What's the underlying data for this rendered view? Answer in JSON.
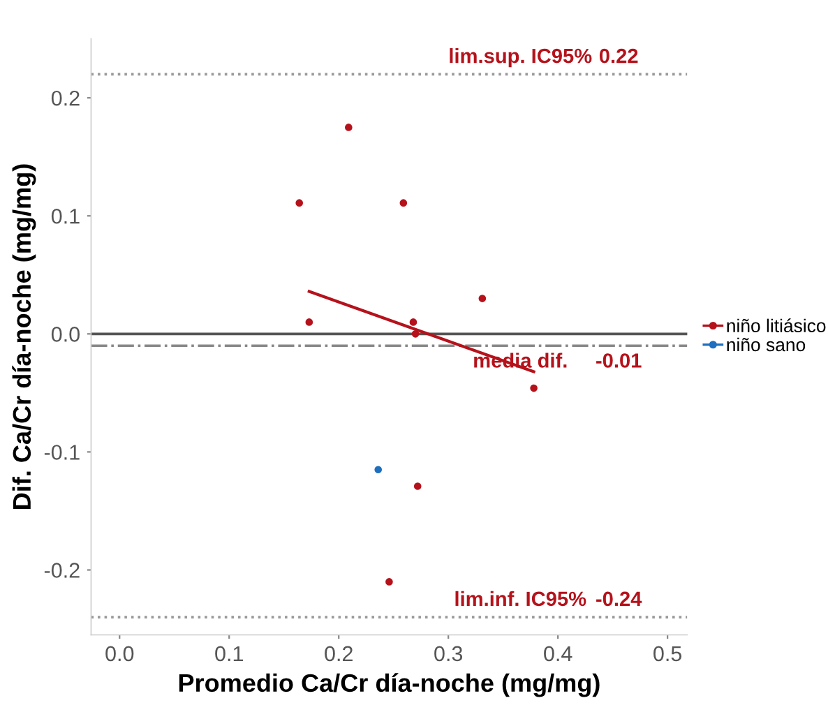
{
  "chart_data": {
    "type": "scatter",
    "xlabel": "Promedio Ca/Cr día-noche (mg/mg)",
    "ylabel": "Dif. Ca/Cr día-noche (mg/mg)",
    "xlim": [
      -0.026,
      0.518
    ],
    "ylim": [
      -0.255,
      0.25
    ],
    "xticks": [
      {
        "value": 0,
        "label": "0.0"
      },
      0.1,
      0.2,
      0.3,
      0.4,
      0.5
    ],
    "yticks": [
      -0.2,
      -0.1,
      {
        "value": 0,
        "label": "0.0"
      },
      0.1,
      0.2
    ],
    "grid": false,
    "legend": "right",
    "annotations": [
      {
        "text": "0.22",
        "y": 0.22
      },
      {
        "text": "-0.01",
        "y": -0.01
      },
      {
        "text": "-0.24",
        "y": -0.24
      }
    ],
    "series": [
      {
        "name": "niño litiásico",
        "color": "#b5121b",
        "marker": "circle",
        "x": [
          0.209,
          0.164,
          0.259,
          0.173,
          0.268,
          0.331,
          0.27,
          0.378,
          0.272,
          0.246
        ],
        "values": [
          0.175,
          0.111,
          0.111,
          0.01,
          0.01,
          0.03,
          0.0,
          -0.046,
          -0.129,
          -0.21
        ]
      },
      {
        "name": "niño sano",
        "color": "#1f6fbf",
        "marker": "circle",
        "x": [
          0.236
        ],
        "values": [
          -0.115
        ]
      },
      {
        "type": "line",
        "color": "#b5121b",
        "marker": "none",
        "x": [
          0.173,
          0.378
        ],
        "values": [
          0.036,
          -0.032
        ]
      }
    ],
    "ref_lines": [
      {
        "axis": "y",
        "value": 0.22,
        "label": "lim.sup. IC95%",
        "color": "#999999",
        "line_style": "dotted"
      },
      {
        "axis": "y",
        "value": 0,
        "color": "#555555",
        "line_style": "solid"
      },
      {
        "axis": "y",
        "value": -0.01,
        "label": "media dif.",
        "color": "#888888",
        "line_style": "dashdot"
      },
      {
        "axis": "y",
        "value": -0.24,
        "label": "lim.inf. IC95%",
        "color": "#999999",
        "line_style": "dotted"
      }
    ]
  }
}
